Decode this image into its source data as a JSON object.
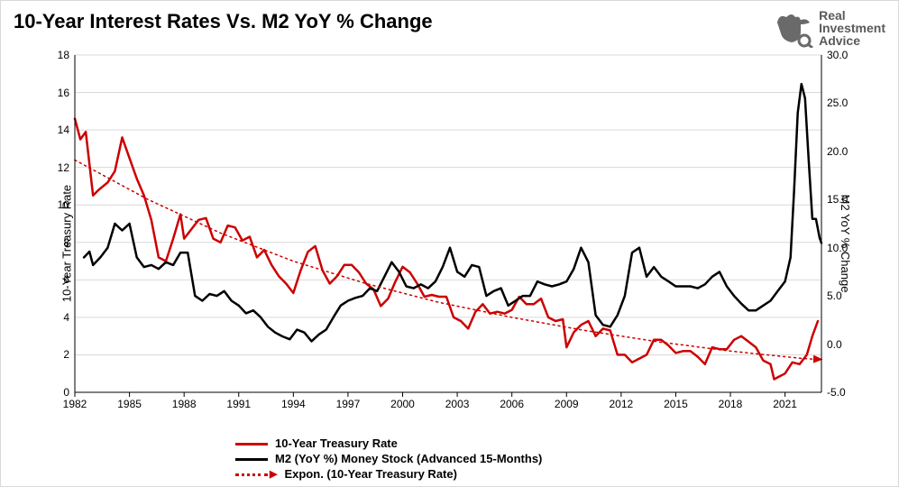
{
  "title": "10-Year Interest Rates Vs. M2 YoY % Change",
  "logo": {
    "line1": "Real",
    "line2": "Investment",
    "line3": "Advice"
  },
  "chart": {
    "type": "dual-axis-line",
    "background_color": "#ffffff",
    "grid_color": "#d9d9d9",
    "font_family": "Arial",
    "title_fontsize": 22,
    "tick_fontsize": 12,
    "label_fontsize": 13,
    "x": {
      "min": 1982,
      "max": 2023,
      "ticks": [
        1982,
        1985,
        1988,
        1991,
        1994,
        1997,
        2000,
        2003,
        2006,
        2009,
        2012,
        2015,
        2018,
        2021
      ]
    },
    "y_left": {
      "label": "10-Year Treasury Rate",
      "min": 0,
      "max": 18,
      "ticks": [
        0,
        2,
        4,
        6,
        8,
        10,
        12,
        14,
        16,
        18
      ]
    },
    "y_right": {
      "label": "M2 YoY % Change",
      "min": -5,
      "max": 30,
      "ticks": [
        -5.0,
        0.0,
        5.0,
        10.0,
        15.0,
        20.0,
        25.0,
        30.0
      ]
    },
    "series": [
      {
        "name": "10-Year Treasury Rate",
        "axis": "left",
        "color": "#cc0000",
        "line_width": 2.5,
        "style": "solid",
        "data": [
          [
            1982.0,
            14.6
          ],
          [
            1982.3,
            13.5
          ],
          [
            1982.6,
            13.9
          ],
          [
            1983.0,
            10.5
          ],
          [
            1983.3,
            10.8
          ],
          [
            1983.8,
            11.2
          ],
          [
            1984.2,
            11.8
          ],
          [
            1984.6,
            13.6
          ],
          [
            1985.0,
            12.5
          ],
          [
            1985.4,
            11.4
          ],
          [
            1985.8,
            10.5
          ],
          [
            1986.2,
            9.2
          ],
          [
            1986.6,
            7.2
          ],
          [
            1987.0,
            7.0
          ],
          [
            1987.4,
            8.2
          ],
          [
            1987.8,
            9.5
          ],
          [
            1988.0,
            8.2
          ],
          [
            1988.4,
            8.7
          ],
          [
            1988.8,
            9.2
          ],
          [
            1989.2,
            9.3
          ],
          [
            1989.6,
            8.2
          ],
          [
            1990.0,
            8.0
          ],
          [
            1990.4,
            8.9
          ],
          [
            1990.8,
            8.8
          ],
          [
            1991.2,
            8.1
          ],
          [
            1991.6,
            8.3
          ],
          [
            1992.0,
            7.2
          ],
          [
            1992.4,
            7.6
          ],
          [
            1992.8,
            6.8
          ],
          [
            1993.2,
            6.2
          ],
          [
            1993.6,
            5.8
          ],
          [
            1994.0,
            5.3
          ],
          [
            1994.4,
            6.5
          ],
          [
            1994.8,
            7.5
          ],
          [
            1995.2,
            7.8
          ],
          [
            1995.6,
            6.5
          ],
          [
            1996.0,
            5.8
          ],
          [
            1996.4,
            6.2
          ],
          [
            1996.8,
            6.8
          ],
          [
            1997.2,
            6.8
          ],
          [
            1997.6,
            6.4
          ],
          [
            1998.0,
            5.8
          ],
          [
            1998.4,
            5.5
          ],
          [
            1998.8,
            4.6
          ],
          [
            1999.2,
            5.0
          ],
          [
            1999.6,
            5.9
          ],
          [
            2000.0,
            6.7
          ],
          [
            2000.4,
            6.4
          ],
          [
            2000.8,
            5.8
          ],
          [
            2001.2,
            5.1
          ],
          [
            2001.6,
            5.2
          ],
          [
            2002.0,
            5.1
          ],
          [
            2002.4,
            5.1
          ],
          [
            2002.8,
            4.0
          ],
          [
            2003.2,
            3.8
          ],
          [
            2003.6,
            3.4
          ],
          [
            2004.0,
            4.3
          ],
          [
            2004.4,
            4.7
          ],
          [
            2004.8,
            4.2
          ],
          [
            2005.2,
            4.3
          ],
          [
            2005.6,
            4.2
          ],
          [
            2006.0,
            4.4
          ],
          [
            2006.4,
            5.1
          ],
          [
            2006.8,
            4.7
          ],
          [
            2007.2,
            4.7
          ],
          [
            2007.6,
            5.0
          ],
          [
            2008.0,
            4.0
          ],
          [
            2008.4,
            3.8
          ],
          [
            2008.8,
            3.9
          ],
          [
            2009.0,
            2.4
          ],
          [
            2009.4,
            3.2
          ],
          [
            2009.8,
            3.6
          ],
          [
            2010.2,
            3.8
          ],
          [
            2010.6,
            3.0
          ],
          [
            2011.0,
            3.4
          ],
          [
            2011.4,
            3.3
          ],
          [
            2011.8,
            2.0
          ],
          [
            2012.2,
            2.0
          ],
          [
            2012.6,
            1.6
          ],
          [
            2013.0,
            1.8
          ],
          [
            2013.4,
            2.0
          ],
          [
            2013.8,
            2.8
          ],
          [
            2014.2,
            2.8
          ],
          [
            2014.6,
            2.5
          ],
          [
            2015.0,
            2.1
          ],
          [
            2015.4,
            2.2
          ],
          [
            2015.8,
            2.2
          ],
          [
            2016.2,
            1.9
          ],
          [
            2016.6,
            1.5
          ],
          [
            2017.0,
            2.4
          ],
          [
            2017.4,
            2.3
          ],
          [
            2017.8,
            2.3
          ],
          [
            2018.2,
            2.8
          ],
          [
            2018.6,
            3.0
          ],
          [
            2019.0,
            2.7
          ],
          [
            2019.4,
            2.4
          ],
          [
            2019.8,
            1.7
          ],
          [
            2020.2,
            1.5
          ],
          [
            2020.4,
            0.7
          ],
          [
            2020.6,
            0.8
          ],
          [
            2021.0,
            1.0
          ],
          [
            2021.4,
            1.6
          ],
          [
            2021.8,
            1.5
          ],
          [
            2022.2,
            2.0
          ],
          [
            2022.5,
            3.0
          ],
          [
            2022.8,
            3.8
          ]
        ]
      },
      {
        "name": "M2 (YoY %) Money Stock (Advanced 15-Months)",
        "axis": "right",
        "color": "#000000",
        "line_width": 2.5,
        "style": "solid",
        "data": [
          [
            1982.5,
            9.0
          ],
          [
            1982.8,
            9.6
          ],
          [
            1983.0,
            8.2
          ],
          [
            1983.4,
            9.0
          ],
          [
            1983.8,
            10.0
          ],
          [
            1984.2,
            12.5
          ],
          [
            1984.6,
            11.8
          ],
          [
            1985.0,
            12.5
          ],
          [
            1985.4,
            9.0
          ],
          [
            1985.8,
            8.0
          ],
          [
            1986.2,
            8.2
          ],
          [
            1986.6,
            7.8
          ],
          [
            1987.0,
            8.5
          ],
          [
            1987.4,
            8.2
          ],
          [
            1987.8,
            9.5
          ],
          [
            1988.2,
            9.5
          ],
          [
            1988.6,
            5.0
          ],
          [
            1989.0,
            4.5
          ],
          [
            1989.4,
            5.2
          ],
          [
            1989.8,
            5.0
          ],
          [
            1990.2,
            5.5
          ],
          [
            1990.6,
            4.5
          ],
          [
            1991.0,
            4.0
          ],
          [
            1991.4,
            3.2
          ],
          [
            1991.8,
            3.5
          ],
          [
            1992.2,
            2.8
          ],
          [
            1992.6,
            1.8
          ],
          [
            1993.0,
            1.2
          ],
          [
            1993.4,
            0.8
          ],
          [
            1993.8,
            0.5
          ],
          [
            1994.2,
            1.5
          ],
          [
            1994.6,
            1.2
          ],
          [
            1995.0,
            0.3
          ],
          [
            1995.4,
            1.0
          ],
          [
            1995.8,
            1.5
          ],
          [
            1996.2,
            2.8
          ],
          [
            1996.6,
            4.0
          ],
          [
            1997.0,
            4.5
          ],
          [
            1997.4,
            4.8
          ],
          [
            1997.8,
            5.0
          ],
          [
            1998.2,
            5.8
          ],
          [
            1998.6,
            5.5
          ],
          [
            1999.0,
            7.0
          ],
          [
            1999.4,
            8.5
          ],
          [
            1999.8,
            7.5
          ],
          [
            2000.2,
            6.0
          ],
          [
            2000.6,
            5.8
          ],
          [
            2001.0,
            6.2
          ],
          [
            2001.4,
            5.8
          ],
          [
            2001.8,
            6.5
          ],
          [
            2002.2,
            8.0
          ],
          [
            2002.6,
            10.0
          ],
          [
            2003.0,
            7.5
          ],
          [
            2003.4,
            7.0
          ],
          [
            2003.8,
            8.2
          ],
          [
            2004.2,
            8.0
          ],
          [
            2004.6,
            5.0
          ],
          [
            2005.0,
            5.5
          ],
          [
            2005.4,
            5.8
          ],
          [
            2005.8,
            4.0
          ],
          [
            2006.2,
            4.5
          ],
          [
            2006.6,
            5.0
          ],
          [
            2007.0,
            5.0
          ],
          [
            2007.4,
            6.5
          ],
          [
            2007.8,
            6.2
          ],
          [
            2008.2,
            6.0
          ],
          [
            2008.6,
            6.2
          ],
          [
            2009.0,
            6.5
          ],
          [
            2009.4,
            7.8
          ],
          [
            2009.8,
            10.0
          ],
          [
            2010.2,
            8.5
          ],
          [
            2010.6,
            3.0
          ],
          [
            2011.0,
            2.0
          ],
          [
            2011.4,
            1.8
          ],
          [
            2011.8,
            3.0
          ],
          [
            2012.2,
            5.0
          ],
          [
            2012.6,
            9.5
          ],
          [
            2013.0,
            10.0
          ],
          [
            2013.4,
            7.0
          ],
          [
            2013.8,
            8.0
          ],
          [
            2014.2,
            7.0
          ],
          [
            2014.6,
            6.5
          ],
          [
            2015.0,
            6.0
          ],
          [
            2015.4,
            6.0
          ],
          [
            2015.8,
            6.0
          ],
          [
            2016.2,
            5.8
          ],
          [
            2016.6,
            6.2
          ],
          [
            2017.0,
            7.0
          ],
          [
            2017.4,
            7.5
          ],
          [
            2017.8,
            6.0
          ],
          [
            2018.2,
            5.0
          ],
          [
            2018.6,
            4.2
          ],
          [
            2019.0,
            3.5
          ],
          [
            2019.4,
            3.5
          ],
          [
            2019.8,
            4.0
          ],
          [
            2020.2,
            4.5
          ],
          [
            2020.6,
            5.5
          ],
          [
            2021.0,
            6.5
          ],
          [
            2021.3,
            9.0
          ],
          [
            2021.5,
            16.0
          ],
          [
            2021.7,
            24.0
          ],
          [
            2021.9,
            27.0
          ],
          [
            2022.1,
            25.5
          ],
          [
            2022.3,
            19.0
          ],
          [
            2022.5,
            13.0
          ],
          [
            2022.7,
            13.0
          ],
          [
            2022.9,
            11.0
          ],
          [
            2023.0,
            10.5
          ]
        ]
      },
      {
        "name": "Expon. (10-Year Treasury Rate)",
        "axis": "left",
        "color": "#cc0000",
        "line_width": 1.5,
        "style": "dotted",
        "data": [
          [
            1982.0,
            12.4
          ],
          [
            1986.0,
            10.3
          ],
          [
            1990.0,
            8.5
          ],
          [
            1994.0,
            7.0
          ],
          [
            1998.0,
            5.8
          ],
          [
            2002.0,
            4.8
          ],
          [
            2006.0,
            4.0
          ],
          [
            2010.0,
            3.3
          ],
          [
            2014.0,
            2.7
          ],
          [
            2018.0,
            2.2
          ],
          [
            2022.0,
            1.8
          ],
          [
            2023.0,
            1.75
          ]
        ],
        "arrow_end": true
      }
    ],
    "legend": {
      "position": "bottom",
      "items": [
        {
          "label": "10-Year Treasury Rate",
          "color": "#cc0000",
          "style": "solid"
        },
        {
          "label": "M2 (YoY %) Money Stock (Advanced 15-Months)",
          "color": "#000000",
          "style": "solid"
        },
        {
          "label": "Expon. (10-Year Treasury Rate)",
          "color": "#cc0000",
          "style": "dotted",
          "arrow": true
        }
      ]
    }
  }
}
